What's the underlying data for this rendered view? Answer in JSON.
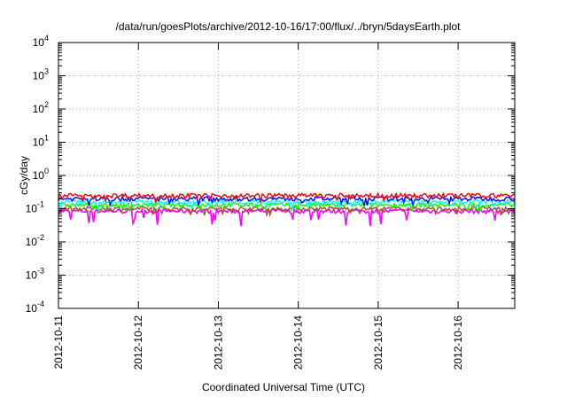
{
  "chart_data": {
    "type": "line",
    "title": "/data/run/goesPlots/archive/2012-10-16/17:00/flux/../bryn/5daysEarth.plot",
    "xlabel": "Coordinated Universal Time (UTC)",
    "ylabel": "cGy/day",
    "yscale": "log",
    "ylim": [
      0.0001,
      10000
    ],
    "y_ticks": [
      {
        "base": "10",
        "exp": "-4",
        "value": 0.0001
      },
      {
        "base": "10",
        "exp": "-3",
        "value": 0.001
      },
      {
        "base": "10",
        "exp": "-2",
        "value": 0.01
      },
      {
        "base": "10",
        "exp": "-1",
        "value": 0.1
      },
      {
        "base": "10",
        "exp": "0",
        "value": 1
      },
      {
        "base": "10",
        "exp": "1",
        "value": 10
      },
      {
        "base": "10",
        "exp": "2",
        "value": 100
      },
      {
        "base": "10",
        "exp": "3",
        "value": 1000
      },
      {
        "base": "10",
        "exp": "4",
        "value": 10000
      }
    ],
    "x_ticks": [
      "2012-10-11",
      "2012-10-12",
      "2012-10-13",
      "2012-10-14",
      "2012-10-15",
      "2012-10-16"
    ],
    "xlim": [
      "2012-10-11T00:00",
      "2012-10-16T17:00"
    ],
    "grid": true,
    "series": [
      {
        "color": "#ff00ff",
        "level": 0.085,
        "dip": "frequent deep drops to ~0.03"
      },
      {
        "color": "#a0522d",
        "level": 0.1
      },
      {
        "color": "#00ff00",
        "level": 0.13
      },
      {
        "color": "#00ffff",
        "level": 0.16
      },
      {
        "color": "#0000ff",
        "level": 0.2
      },
      {
        "color": "#ff0000",
        "level": 0.25
      }
    ]
  }
}
